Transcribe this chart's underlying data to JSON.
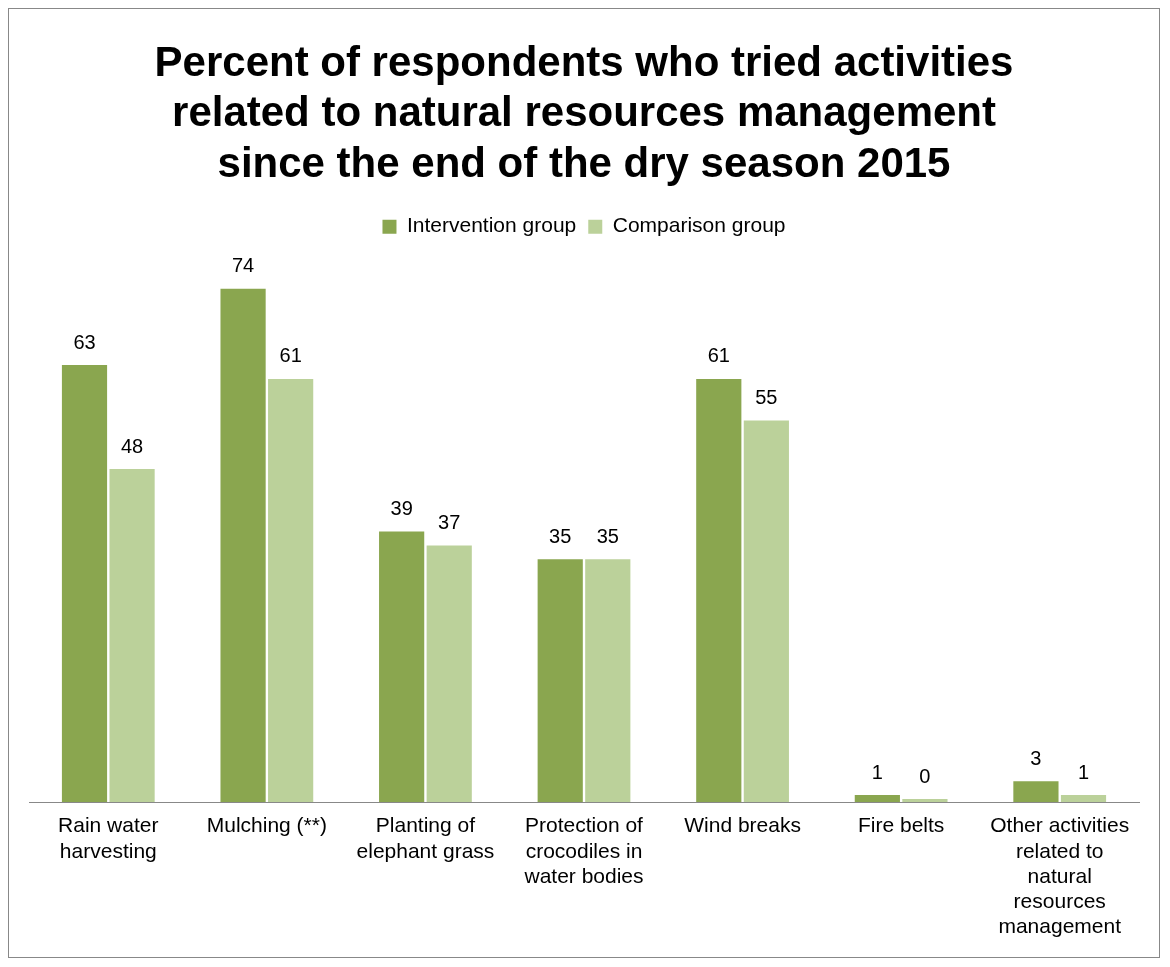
{
  "chart_data": {
    "type": "bar",
    "title": "Percent of respondents who tried activities related to natural resources management since the end of the dry season 2015",
    "categories": [
      "Rain water harvesting",
      "Mulching (**)",
      "Planting of elephant grass",
      "Protection of crocodiles in water bodies",
      "Wind breaks",
      "Fire belts",
      "Other activities related to natural resources management"
    ],
    "series": [
      {
        "name": "Intervention group",
        "color": "#8aa64f",
        "values": [
          63,
          74,
          39,
          35,
          61,
          1,
          3
        ]
      },
      {
        "name": "Comparison group",
        "color": "#bbd19a",
        "values": [
          48,
          61,
          37,
          35,
          55,
          0,
          1
        ]
      }
    ],
    "data_labels": true,
    "legend": "top",
    "grid": false
  }
}
